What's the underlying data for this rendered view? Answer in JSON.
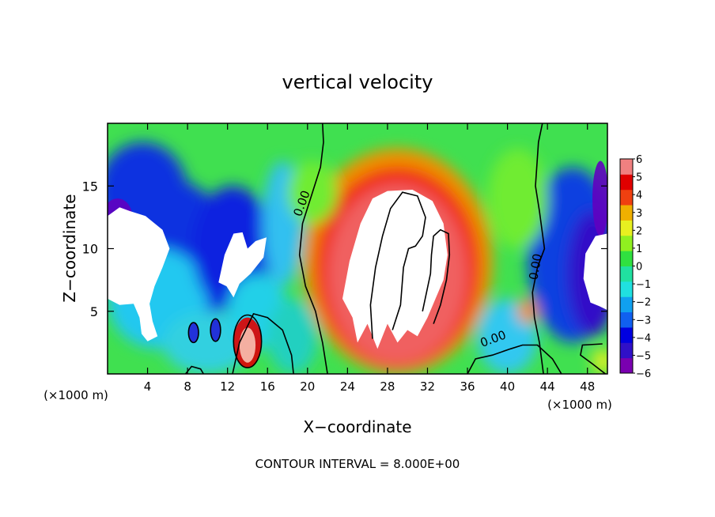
{
  "chart_data": {
    "type": "heatmap",
    "title": "vertical velocity",
    "xlabel": "X−coordinate",
    "ylabel": "Z−coordinate",
    "x_units": "(×1000 m)",
    "x_units_right": "(×1000 m)",
    "footer": "CONTOUR INTERVAL = 8.000E+00",
    "xlim": [
      0,
      50
    ],
    "ylim": [
      0,
      20
    ],
    "x_ticks": [
      4,
      8,
      12,
      16,
      20,
      24,
      28,
      32,
      36,
      40,
      44,
      48
    ],
    "y_ticks": [
      5,
      10,
      15
    ],
    "colorbar": {
      "ticks": [
        "6",
        "5",
        "4",
        "3",
        "2",
        "1",
        "0",
        "−1",
        "−2",
        "−3",
        "−4",
        "−5",
        "−6"
      ],
      "min": -6,
      "max": 6,
      "colors": [
        "#7a00b0",
        "#3010c8",
        "#0000e0",
        "#1060f0",
        "#10a0f0",
        "#20e0e0",
        "#20e0a0",
        "#30e040",
        "#90f020",
        "#e8f020",
        "#f0b000",
        "#f04010",
        "#e00000",
        "#f08080"
      ]
    },
    "contour_labels": [
      "0.00",
      "0.00",
      "0.00",
      "0.00"
    ],
    "features": [
      {
        "name": "updraft",
        "x_range": [
          21,
          37
        ],
        "z_range": [
          0,
          17
        ],
        "max_above": 6
      },
      {
        "name": "downdraft-left",
        "x_range": [
          0,
          14
        ],
        "z_range": [
          2,
          16
        ],
        "min_below": -6
      },
      {
        "name": "downdraft-middle",
        "x_range": [
          9,
          16
        ],
        "z_range": [
          4,
          12
        ],
        "min_below": -6
      },
      {
        "name": "downdraft-right",
        "x_range": [
          43,
          50
        ],
        "z_range": [
          4,
          15
        ],
        "min_below": -6
      }
    ]
  }
}
